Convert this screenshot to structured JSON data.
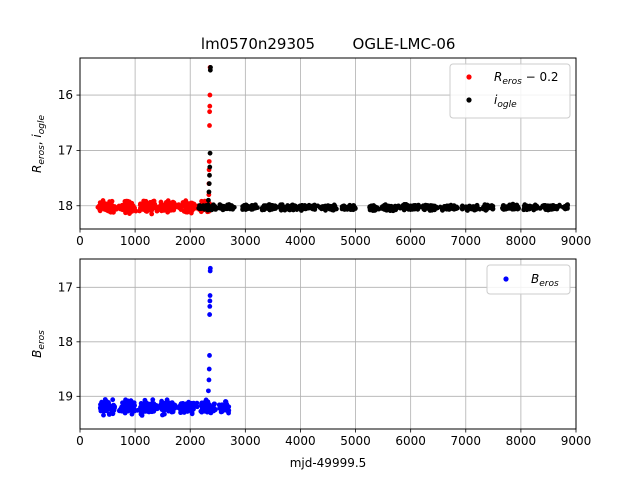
{
  "figure": {
    "title_left": "lm0570n29305",
    "title_right": "OGLE-LMC-06"
  },
  "colors": {
    "r_eros": "#ff0000",
    "i_ogle": "#000000",
    "b_eros": "#0000ff",
    "grid": "#b0b0b0",
    "legend_border": "#cccccc"
  },
  "chart_data": [
    {
      "type": "scatter",
      "panel": "top",
      "ylabel": "R_eros , i_ogle",
      "ylabel_parts": {
        "a": "R",
        "a_sub": "eros",
        "sep": ", ",
        "b": "i",
        "b_sub": "ogle"
      },
      "xlim": [
        0,
        9000
      ],
      "ylim": [
        18.42,
        15.33
      ],
      "y_inverted": true,
      "grid": true,
      "legend_placement": "top-right",
      "xticks": [
        "0",
        "1000",
        "2000",
        "3000",
        "4000",
        "5000",
        "6000",
        "7000",
        "8000",
        "9000"
      ],
      "yticks": [
        "16",
        "17",
        "18"
      ],
      "series": [
        {
          "name": "R_eros − 0.2",
          "legend_parts": {
            "main": "R",
            "sub": "eros",
            "rest": " − 0.2"
          },
          "color": "red",
          "x_range": [
            300,
            2380
          ],
          "baseline": 18.02,
          "scatter": 0.08,
          "count": 430,
          "spike": [
            [
              2330,
              18.05
            ],
            [
              2335,
              17.95
            ],
            [
              2338,
              17.8
            ],
            [
              2340,
              17.6
            ],
            [
              2342,
              17.35
            ],
            [
              2345,
              17.2
            ],
            [
              2350,
              16.55
            ],
            [
              2352,
              16.3
            ],
            [
              2355,
              16.2
            ],
            [
              2357,
              16.0
            ],
            [
              2360,
              15.5
            ],
            [
              2362,
              18.0
            ]
          ]
        },
        {
          "name": "i_ogle",
          "legend_parts": {
            "main": "i",
            "sub": "ogle",
            "rest": ""
          },
          "color": "black",
          "x_range": [
            2150,
            8850
          ],
          "baseline": 18.03,
          "scatter": 0.04,
          "count": 900,
          "gaps": [
            [
              2800,
              2950
            ],
            [
              5000,
              5250
            ],
            [
              6950,
              7000
            ],
            [
              7500,
              7600
            ],
            [
              8000,
              8050
            ]
          ],
          "spike": [
            [
              2320,
              18.0
            ],
            [
              2330,
              17.9
            ],
            [
              2340,
              17.75
            ],
            [
              2345,
              17.6
            ],
            [
              2350,
              17.45
            ],
            [
              2355,
              17.3
            ],
            [
              2360,
              17.05
            ],
            [
              2365,
              15.55
            ],
            [
              2368,
              15.5
            ]
          ]
        }
      ]
    },
    {
      "type": "scatter",
      "panel": "bottom",
      "ylabel": "B_eros",
      "ylabel_parts": {
        "a": "B",
        "a_sub": "eros"
      },
      "xlabel": "mjd-49999.5",
      "xlim": [
        0,
        9000
      ],
      "ylim": [
        19.6,
        16.48
      ],
      "y_inverted": true,
      "grid": true,
      "legend_placement": "top-right",
      "xticks": [
        "0",
        "1000",
        "2000",
        "3000",
        "4000",
        "5000",
        "6000",
        "7000",
        "8000",
        "9000"
      ],
      "yticks": [
        "17",
        "18",
        "19"
      ],
      "series": [
        {
          "name": "B_eros",
          "legend_parts": {
            "main": "B",
            "sub": "eros",
            "rest": ""
          },
          "color": "blue",
          "x_range": [
            300,
            2700
          ],
          "baseline": 19.2,
          "scatter": 0.1,
          "count": 430,
          "spike": [
            [
              2320,
              19.1
            ],
            [
              2330,
              18.9
            ],
            [
              2340,
              18.7
            ],
            [
              2345,
              18.5
            ],
            [
              2350,
              18.25
            ],
            [
              2352,
              17.5
            ],
            [
              2355,
              17.35
            ],
            [
              2357,
              17.25
            ],
            [
              2360,
              17.15
            ],
            [
              2362,
              16.7
            ],
            [
              2365,
              16.65
            ]
          ]
        }
      ]
    }
  ]
}
